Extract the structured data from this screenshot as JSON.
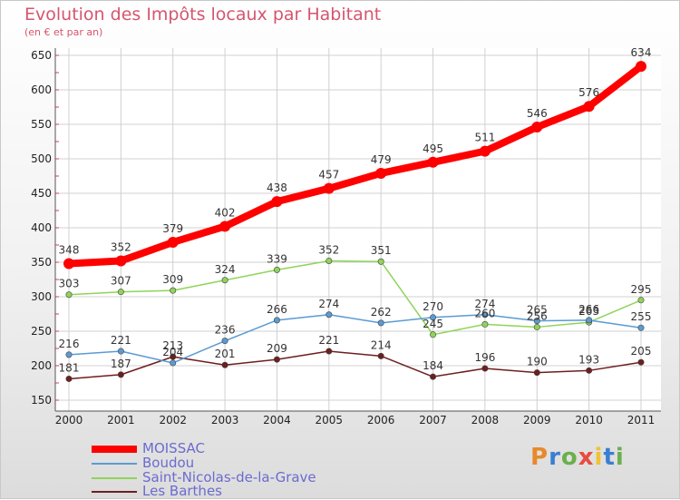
{
  "title": "Evolution des Impôts locaux par Habitant",
  "subtitle": "(en € et par an)",
  "logo_text": "Proxiti",
  "chart_data": {
    "type": "line",
    "x": [
      2000,
      2001,
      2002,
      2003,
      2004,
      2005,
      2006,
      2007,
      2008,
      2009,
      2010,
      2011
    ],
    "ylim": [
      150,
      650
    ],
    "yticks": [
      150,
      200,
      250,
      300,
      350,
      400,
      450,
      500,
      550,
      600,
      650
    ],
    "grid": true,
    "legend_position": "bottom-left",
    "series": [
      {
        "name": "MOISSAC",
        "color": "#ff0000",
        "values": [
          348,
          352,
          379,
          402,
          438,
          457,
          479,
          495,
          511,
          546,
          576,
          634
        ]
      },
      {
        "name": "Boudou",
        "color": "#5a9bd3",
        "values": [
          216,
          221,
          204,
          236,
          266,
          274,
          262,
          270,
          274,
          265,
          266,
          255
        ]
      },
      {
        "name": "Saint-Nicolas-de-la-Grave",
        "color": "#8fd45a",
        "values": [
          303,
          307,
          309,
          324,
          339,
          352,
          351,
          245,
          260,
          256,
          263,
          295
        ]
      },
      {
        "name": "Les Barthes",
        "color": "#6e1e1e",
        "values": [
          181,
          187,
          213,
          201,
          209,
          221,
          214,
          184,
          196,
          190,
          193,
          205
        ]
      }
    ]
  }
}
